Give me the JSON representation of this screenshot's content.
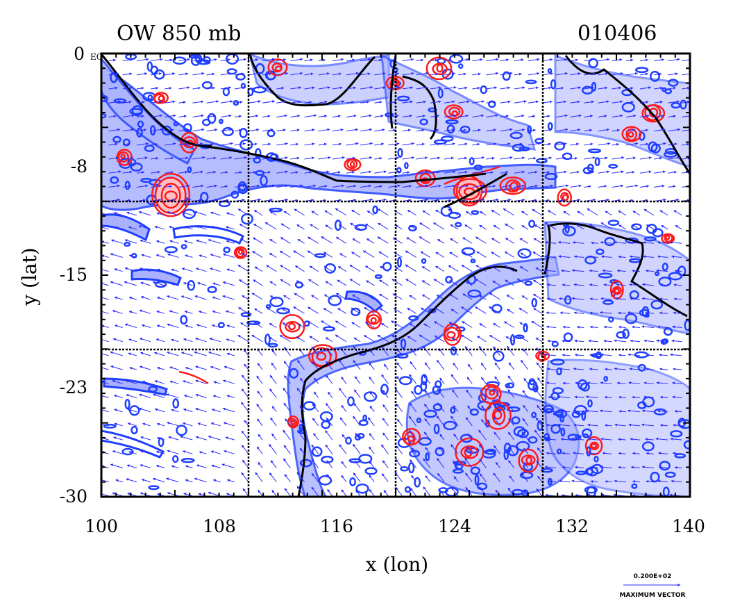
{
  "title_left": "OW 850 mb",
  "title_right": "010406",
  "equator_label": "EQ",
  "xlabel": "x (lon)",
  "ylabel": "y (lat)",
  "x_ticks": [
    "100",
    "108",
    "116",
    "124",
    "132",
    "140"
  ],
  "y_ticks": [
    "0",
    "-8",
    "-15",
    "-23",
    "-30"
  ],
  "legend": {
    "value": "0.200E+02",
    "label": "MAXIMUM VECTOR"
  },
  "colors": {
    "positive_contour": "#ff1a1a",
    "negative_contour": "#1f3fff",
    "negative_fill": "#aab2ff",
    "positive_fill": "#ffc0c8",
    "vector": "#2a2aff",
    "coast": "#000000"
  },
  "chart_data": {
    "type": "contour-vector-map",
    "xlim": [
      100,
      140
    ],
    "ylim": [
      -30,
      0
    ],
    "grid_lon": [
      110,
      120,
      130
    ],
    "grid_lat": [
      -10,
      -20
    ],
    "red_blobs": [
      [
        104.7,
        -9.6,
        1.2
      ],
      [
        115.0,
        -20.5,
        0.9
      ],
      [
        113.0,
        -18.5,
        0.7
      ],
      [
        125.0,
        -9.3,
        1.0
      ],
      [
        122.0,
        -8.5,
        0.6
      ],
      [
        128.0,
        -9.0,
        0.8
      ],
      [
        118.5,
        -18.0,
        0.6
      ],
      [
        123.8,
        -19.0,
        0.7
      ],
      [
        127.0,
        -24.5,
        0.8
      ],
      [
        131.5,
        -9.7,
        0.5
      ],
      [
        137.5,
        -4.0,
        0.8
      ],
      [
        136.0,
        -5.5,
        0.6
      ],
      [
        123.0,
        -1.0,
        0.7
      ],
      [
        112.0,
        -1.0,
        0.6
      ],
      [
        120.0,
        -2.0,
        0.5
      ],
      [
        106.0,
        -6.0,
        0.6
      ],
      [
        113.0,
        -25.0,
        0.4
      ],
      [
        125.0,
        -27.0,
        0.8
      ],
      [
        121.0,
        -26.0,
        0.6
      ],
      [
        129.0,
        -27.5,
        0.7
      ],
      [
        133.5,
        -26.5,
        0.5
      ],
      [
        126.5,
        -23.0,
        0.6
      ],
      [
        109.5,
        -13.5,
        0.4
      ],
      [
        138.5,
        -12.5,
        0.4
      ],
      [
        135.0,
        -16.0,
        0.5
      ],
      [
        101.5,
        -7.0,
        0.5
      ],
      [
        104.0,
        -3.0,
        0.5
      ],
      [
        117.0,
        -7.5,
        0.5
      ],
      [
        124.0,
        -4.0,
        0.5
      ],
      [
        130.0,
        -20.5,
        0.4
      ]
    ]
  }
}
